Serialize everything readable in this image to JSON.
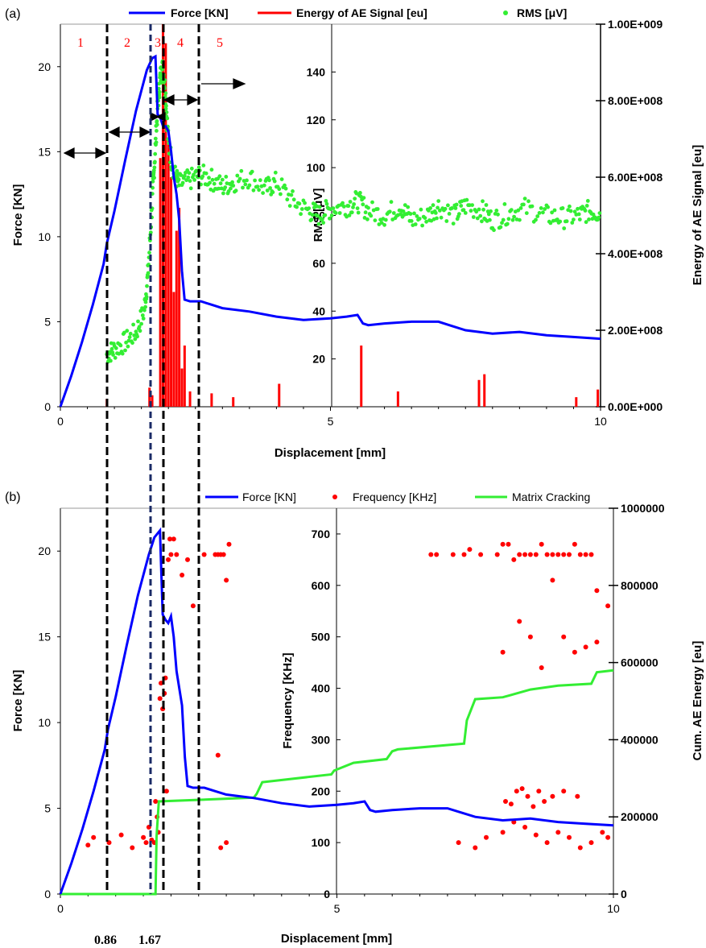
{
  "chart_data": [
    {
      "panel": "(a)",
      "type": "line",
      "xlabel": "Displacement [mm]",
      "x_ticks": [
        "0",
        "5",
        "10"
      ],
      "xlim": [
        0,
        10
      ],
      "ylabel_left": "Force [KN]",
      "y_left_ticks": [
        "0",
        "5",
        "10",
        "15",
        "20"
      ],
      "ylim_left": [
        0,
        22.5
      ],
      "ylabel_inner": "RMS [μV]",
      "y_inner_ticks": [
        "20",
        "40",
        "60",
        "80",
        "100",
        "120",
        "140"
      ],
      "ylim_inner": [
        0,
        160
      ],
      "ylabel_right": "Energy of AE Signal [eu]",
      "y_right_ticks": [
        "0.00E+000",
        "2.00E+008",
        "4.00E+008",
        "6.00E+008",
        "8.00E+008",
        "1.00E+009"
      ],
      "ylim_right": [
        0,
        1000000000
      ],
      "legend_position": "top",
      "region_labels": [
        "1",
        "2",
        "3",
        "4",
        "5"
      ],
      "boundaries_mm": [
        0.86,
        1.67,
        1.92,
        2.6
      ],
      "series": [
        {
          "name": "Force [KN]",
          "color": "#0000ff",
          "x": [
            0,
            0.2,
            0.4,
            0.6,
            0.8,
            0.86,
            1.0,
            1.2,
            1.4,
            1.6,
            1.7,
            1.76,
            1.8,
            1.85,
            1.9,
            1.95,
            2.0,
            2.05,
            2.1,
            2.15,
            2.2,
            2.25,
            2.3,
            2.4,
            2.6,
            2.8,
            3.0,
            3.5,
            4.0,
            4.5,
            5.0,
            5.3,
            5.5,
            5.6,
            5.7,
            6.0,
            6.5,
            7.0,
            7.2,
            7.5,
            8.0,
            8.5,
            9.0,
            9.5,
            10.0
          ],
          "y": [
            0,
            1.8,
            3.8,
            6.0,
            8.4,
            9.6,
            11.5,
            14.5,
            17.4,
            19.8,
            20.5,
            20.6,
            17.2,
            17.0,
            16.5,
            16.5,
            16.2,
            15.0,
            13.5,
            12.5,
            11.0,
            8.0,
            6.3,
            6.2,
            6.2,
            6.0,
            5.8,
            5.6,
            5.3,
            5.1,
            5.2,
            5.3,
            5.4,
            4.9,
            4.8,
            4.9,
            5.0,
            5.0,
            4.8,
            4.5,
            4.3,
            4.4,
            4.2,
            4.1,
            4.0
          ]
        },
        {
          "name": "Energy of AE Signal [eu]",
          "color": "#ff0000",
          "x": [
            0.86,
            1.65,
            1.7,
            1.85,
            1.9,
            1.95,
            2.0,
            2.05,
            2.1,
            2.15,
            2.2,
            2.25,
            2.3,
            2.4,
            2.8,
            3.2,
            4.05,
            5.57,
            6.25,
            7.75,
            7.85,
            9.55,
            9.95
          ],
          "y": [
            20000000,
            50000000,
            30000000,
            650000000,
            1000000000,
            950000000,
            700000000,
            600000000,
            300000000,
            460000000,
            520000000,
            100000000,
            160000000,
            40000000,
            35000000,
            25000000,
            60000000,
            160000000,
            40000000,
            70000000,
            85000000,
            25000000,
            45000000
          ]
        },
        {
          "name": "RMS [μV]",
          "color": "#33ee33",
          "x": [
            0.86,
            1.0,
            1.2,
            1.4,
            1.55,
            1.62,
            1.7,
            1.75,
            1.8,
            1.85,
            1.9,
            1.95,
            2.0,
            2.1,
            2.2,
            2.4,
            2.6,
            2.8,
            3.0,
            3.2,
            3.5,
            3.8,
            4.0,
            4.3,
            4.6,
            4.8,
            5.0,
            5.3,
            5.5,
            5.7,
            6.0,
            6.3,
            6.5,
            6.8,
            7.0,
            7.3,
            7.5,
            7.8,
            8.0,
            8.3,
            8.6,
            9.0,
            9.3,
            9.6,
            9.8,
            10.0
          ],
          "y": [
            22,
            24,
            27,
            31,
            40,
            55,
            85,
            105,
            125,
            138,
            142,
            130,
            110,
            98,
            93,
            95,
            97,
            95,
            92,
            94,
            96,
            91,
            94,
            86,
            82,
            80,
            83,
            84,
            86,
            82,
            80,
            84,
            78,
            80,
            84,
            80,
            84,
            82,
            78,
            81,
            83,
            80,
            79,
            80,
            82,
            81
          ]
        }
      ]
    },
    {
      "panel": "(b)",
      "type": "line",
      "xlabel": "Displacement [mm]",
      "x_ticks": [
        "0",
        "5",
        "10"
      ],
      "xlim": [
        0,
        10
      ],
      "ylabel_left": "Force [KN]",
      "y_left_ticks": [
        "0",
        "5",
        "10",
        "15",
        "20"
      ],
      "ylim_left": [
        0,
        22.5
      ],
      "ylabel_inner": "Frequency [KHz]",
      "y_inner_ticks": [
        "0",
        "100",
        "200",
        "300",
        "400",
        "500",
        "600",
        "700"
      ],
      "ylim_inner": [
        0,
        750
      ],
      "ylabel_right": "Cum. AE Energy [eu]",
      "y_right_ticks": [
        "0",
        "200000",
        "400000",
        "600000",
        "800000",
        "1000000"
      ],
      "ylim_right": [
        0,
        1000000
      ],
      "legend_position": "top",
      "boundary_labels": [
        "0.86",
        "1.67"
      ],
      "boundaries_mm": [
        0.86,
        1.67,
        1.92,
        2.6
      ],
      "series": [
        {
          "name": "Force [KN]",
          "color": "#0000ff",
          "x": [
            0,
            0.2,
            0.4,
            0.6,
            0.8,
            0.86,
            1.0,
            1.2,
            1.4,
            1.6,
            1.7,
            1.8,
            1.85,
            1.9,
            1.95,
            2.0,
            2.05,
            2.1,
            2.15,
            2.2,
            2.25,
            2.3,
            2.4,
            2.6,
            2.8,
            3.0,
            3.5,
            4.0,
            4.5,
            5.0,
            5.3,
            5.5,
            5.6,
            5.7,
            6.0,
            6.5,
            7.0,
            7.2,
            7.5,
            8.0,
            8.5,
            9.0,
            9.5,
            10.0
          ],
          "y": [
            0,
            1.8,
            3.8,
            6.0,
            8.4,
            9.6,
            11.5,
            14.5,
            17.4,
            19.8,
            20.8,
            21.2,
            16.3,
            16.0,
            15.8,
            16.2,
            15.0,
            13.0,
            12.0,
            11.0,
            8.0,
            6.3,
            6.2,
            6.2,
            6.0,
            5.8,
            5.6,
            5.3,
            5.1,
            5.2,
            5.3,
            5.4,
            4.9,
            4.8,
            4.9,
            5.0,
            5.0,
            4.8,
            4.5,
            4.3,
            4.4,
            4.2,
            4.1,
            4.0
          ]
        },
        {
          "name": "Matrix Cracking",
          "color": "#33ee33",
          "x": [
            0,
            1.72,
            1.74,
            1.78,
            3.5,
            3.55,
            3.65,
            4.9,
            4.95,
            5.3,
            5.9,
            6.0,
            6.1,
            7.3,
            7.35,
            7.5,
            8.0,
            8.5,
            9.0,
            9.6,
            9.7,
            10.0
          ],
          "y": [
            0,
            0,
            150000,
            240000,
            250000,
            260000,
            290000,
            310000,
            320000,
            340000,
            350000,
            370000,
            375000,
            390000,
            450000,
            505000,
            510000,
            530000,
            540000,
            545000,
            575000,
            580000
          ]
        },
        {
          "name": "Frequency [KHz]",
          "color": "#ff0000",
          "type": "scatter",
          "x": [
            0.5,
            0.6,
            0.88,
            1.1,
            1.3,
            1.5,
            1.55,
            1.6,
            1.65,
            1.7,
            1.72,
            1.75,
            1.77,
            1.8,
            1.82,
            1.85,
            1.88,
            1.9,
            1.92,
            1.95,
            1.98,
            2.0,
            2.05,
            2.1,
            2.2,
            2.3,
            2.4,
            2.6,
            2.8,
            2.85,
            2.9,
            2.95,
            3.0,
            3.05,
            2.85,
            2.9,
            3.0,
            6.7,
            6.8,
            7.1,
            7.3,
            7.4,
            7.6,
            7.9,
            8.0,
            8.1,
            8.2,
            8.3,
            8.4,
            8.5,
            8.6,
            8.7,
            8.8,
            8.9,
            9.0,
            9.1,
            9.2,
            9.3,
            9.4,
            9.5,
            9.6,
            9.7,
            7.2,
            7.5,
            7.7,
            8.0,
            8.2,
            8.4,
            8.6,
            8.8,
            9.0,
            9.2,
            9.4,
            9.6,
            9.8,
            9.9,
            8.0,
            8.3,
            8.5,
            8.7,
            8.9,
            9.1,
            9.3,
            9.5,
            9.7,
            9.9,
            8.05,
            8.15,
            8.25,
            8.35,
            8.45,
            8.55,
            8.65,
            8.75,
            8.9,
            9.1,
            9.35
          ],
          "y": [
            95,
            110,
            100,
            115,
            90,
            110,
            100,
            130,
            105,
            100,
            180,
            150,
            120,
            380,
            410,
            360,
            390,
            420,
            200,
            650,
            690,
            660,
            690,
            660,
            620,
            650,
            560,
            660,
            660,
            660,
            660,
            660,
            610,
            680,
            270,
            90,
            100,
            660,
            660,
            660,
            660,
            670,
            660,
            660,
            680,
            680,
            650,
            660,
            660,
            660,
            660,
            680,
            660,
            660,
            660,
            660,
            660,
            680,
            660,
            660,
            660,
            590,
            100,
            90,
            110,
            120,
            140,
            130,
            115,
            100,
            120,
            110,
            90,
            100,
            120,
            110,
            470,
            530,
            500,
            440,
            610,
            500,
            470,
            480,
            490,
            560,
            180,
            175,
            200,
            205,
            190,
            170,
            200,
            180,
            190,
            200,
            190
          ]
        }
      ]
    }
  ]
}
